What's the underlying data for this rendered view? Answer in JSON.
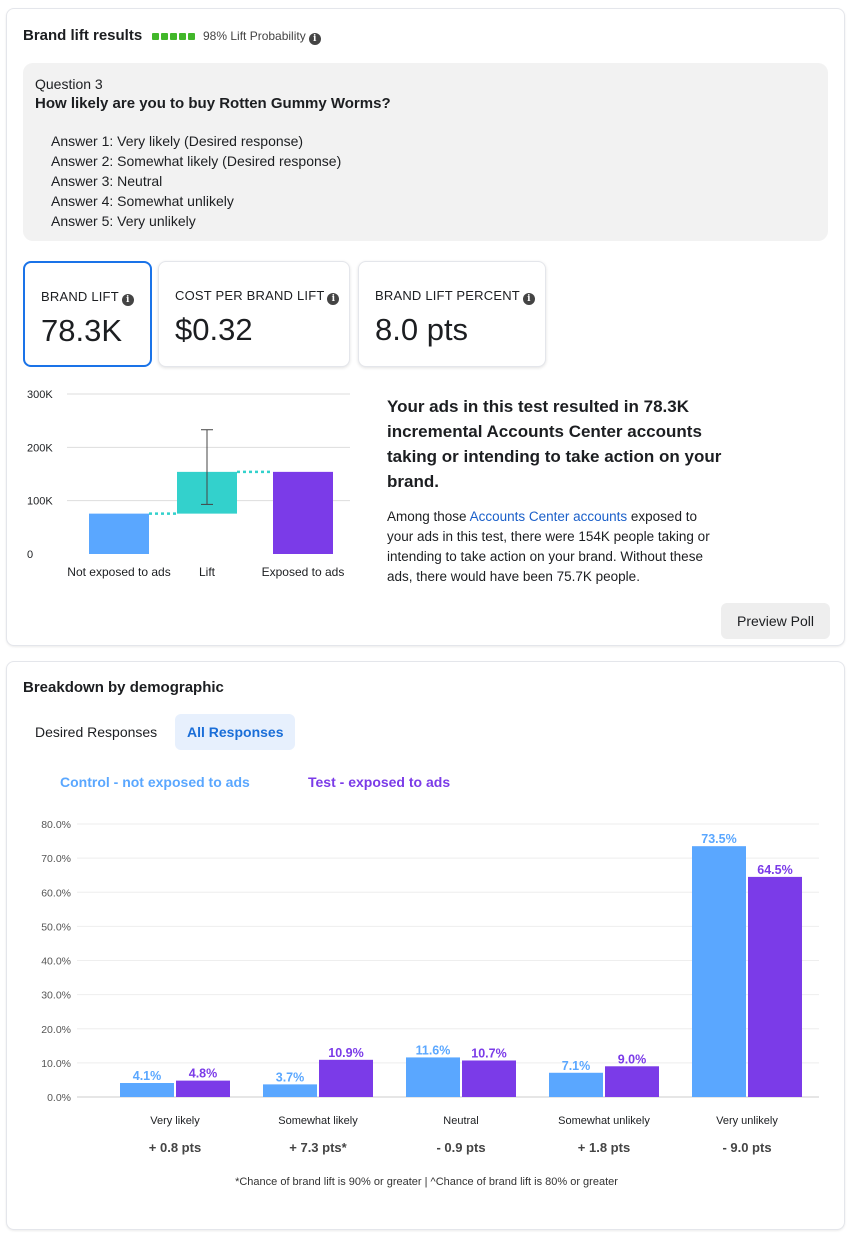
{
  "card1": {
    "title": "Brand lift results",
    "probability_text": "98% Lift Probability",
    "probability_dots": 5,
    "info_glyph": "i",
    "question": {
      "number": "Question 3",
      "text": "How likely are you to buy Rotten Gummy Worms?",
      "answers": [
        "Answer 1: Very likely (Desired response)",
        "Answer 2: Somewhat likely (Desired response)",
        "Answer 3: Neutral",
        "Answer 4: Somewhat unlikely",
        "Answer 5: Very unlikely"
      ]
    },
    "metrics": [
      {
        "label": "BRAND LIFT",
        "value": "78.3K",
        "selected": true
      },
      {
        "label": "COST PER BRAND LIFT",
        "value": "$0.32",
        "selected": false
      },
      {
        "label": "BRAND LIFT PERCENT",
        "value": "8.0 pts",
        "selected": false
      }
    ],
    "summary": {
      "headline": "Your ads in this test resulted in 78.3K incremental Accounts Center accounts taking or intending to take action on your brand.",
      "body_prefix": "Among those ",
      "body_link": "Accounts Center accounts",
      "body_suffix": " exposed to your ads in this test, there were 154K people taking or intending to take action on your brand. Without these ads, there would have been 75.7K people."
    },
    "preview_button": "Preview Poll"
  },
  "card2": {
    "title": "Breakdown by demographic",
    "tabs": [
      {
        "label": "Desired Responses",
        "active": false
      },
      {
        "label": "All Responses",
        "active": true
      }
    ],
    "legend": {
      "control": "Control - not exposed to ads",
      "test": "Test - exposed to ads"
    },
    "footnote": "*Chance of brand lift is 90% or greater | ^Chance of brand lift is 80% or greater"
  },
  "colors": {
    "control": "#5aa7ff",
    "test": "#7b3be8",
    "lift": "#33d1cc",
    "selected_border": "#1a73e8",
    "probability": "#42b72a"
  },
  "chart_data": [
    {
      "type": "bar",
      "categories": [
        "Not exposed to ads",
        "Lift",
        "Exposed to ads"
      ],
      "series": [
        {
          "values": [
            75700,
            78300,
            154000
          ]
        }
      ],
      "lift_base": 75700,
      "error_bar": {
        "category": "Lift",
        "low": 93000,
        "high": 233000
      },
      "y_ticks": [
        "0",
        "100K",
        "200K",
        "300K"
      ],
      "ylim": [
        0,
        300000
      ],
      "grid": true
    },
    {
      "type": "bar",
      "categories": [
        "Very likely",
        "Somewhat likely",
        "Neutral",
        "Somewhat unlikely",
        "Very unlikely"
      ],
      "series": [
        {
          "name": "Control - not exposed to ads",
          "values": [
            4.1,
            3.7,
            11.6,
            7.1,
            73.5
          ],
          "labels": [
            "4.1%",
            "3.7%",
            "11.6%",
            "7.1%",
            "73.5%"
          ]
        },
        {
          "name": "Test - exposed to ads",
          "values": [
            4.8,
            10.9,
            10.7,
            9.0,
            64.5
          ],
          "labels": [
            "4.8%",
            "10.9%",
            "10.7%",
            "9.0%",
            "64.5%"
          ]
        }
      ],
      "lift_labels": [
        "+ 0.8 pts",
        "+ 7.3 pts*",
        "- 0.9 pts",
        "+ 1.8 pts",
        "- 9.0 pts"
      ],
      "y_ticks": [
        "0.0%",
        "10.0%",
        "20.0%",
        "30.0%",
        "40.0%",
        "50.0%",
        "60.0%",
        "70.0%",
        "80.0%"
      ],
      "ylim": [
        0,
        80
      ],
      "grid": true
    }
  ]
}
